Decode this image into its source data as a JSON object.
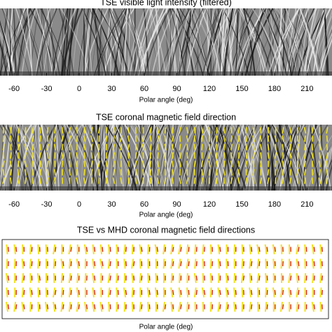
{
  "chart_data": [
    {
      "type": "image",
      "title": "TSE visible light intensity (filtered)",
      "xlabel": "Polar angle (deg)",
      "xlim": [
        -73,
        233
      ],
      "xticks": [
        -60,
        -30,
        0,
        30,
        60,
        90,
        120,
        150,
        180,
        210
      ]
    },
    {
      "type": "image",
      "title": "TSE coronal magnetic field direction",
      "xlabel": "Polar angle (deg)",
      "xlim": [
        -73,
        233
      ],
      "xticks": [
        -60,
        -30,
        0,
        30,
        60,
        90,
        120,
        150,
        180,
        210
      ],
      "overlay_color": "#f2e21c"
    },
    {
      "type": "field",
      "title": "TSE vs MHD coronal magnetic field directions",
      "xlabel": "Polar angle (deg)",
      "xlim": [
        -73,
        233
      ],
      "colors": [
        "#f2e21c",
        "#d42a1c"
      ]
    }
  ]
}
